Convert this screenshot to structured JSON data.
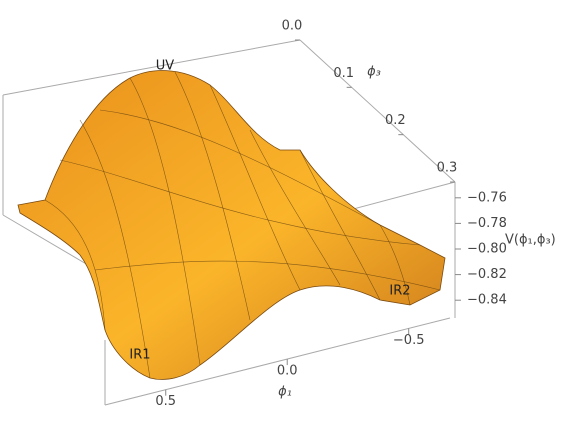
{
  "chart_data": {
    "type": "surface",
    "x_label": "ϕ₁",
    "y_label": "ϕ₃",
    "z_label": "V(ϕ₁,ϕ₃)",
    "xlim": [
      0.75,
      -0.67
    ],
    "xticks": [
      0.5,
      {
        "value": 0,
        "label": "0.0"
      },
      {
        "value": -0.5,
        "label": "−0.5"
      }
    ],
    "ylim": [
      0,
      0.3
    ],
    "yticks": [
      {
        "value": 0,
        "label": "0.0"
      },
      0.1,
      0.2,
      0.3
    ],
    "zlim": [
      -0.85,
      -0.75
    ],
    "zticks": [
      {
        "value": -0.76,
        "label": "−0.76"
      },
      {
        "value": -0.78,
        "label": "−0.78"
      },
      {
        "value": -0.8,
        "label": "−0.80"
      },
      {
        "value": -0.82,
        "label": "−0.82"
      },
      {
        "value": -0.84,
        "label": "−0.84"
      }
    ],
    "annotations": [
      "UV",
      "IR1",
      "IR2"
    ],
    "color": "#f5a623"
  }
}
